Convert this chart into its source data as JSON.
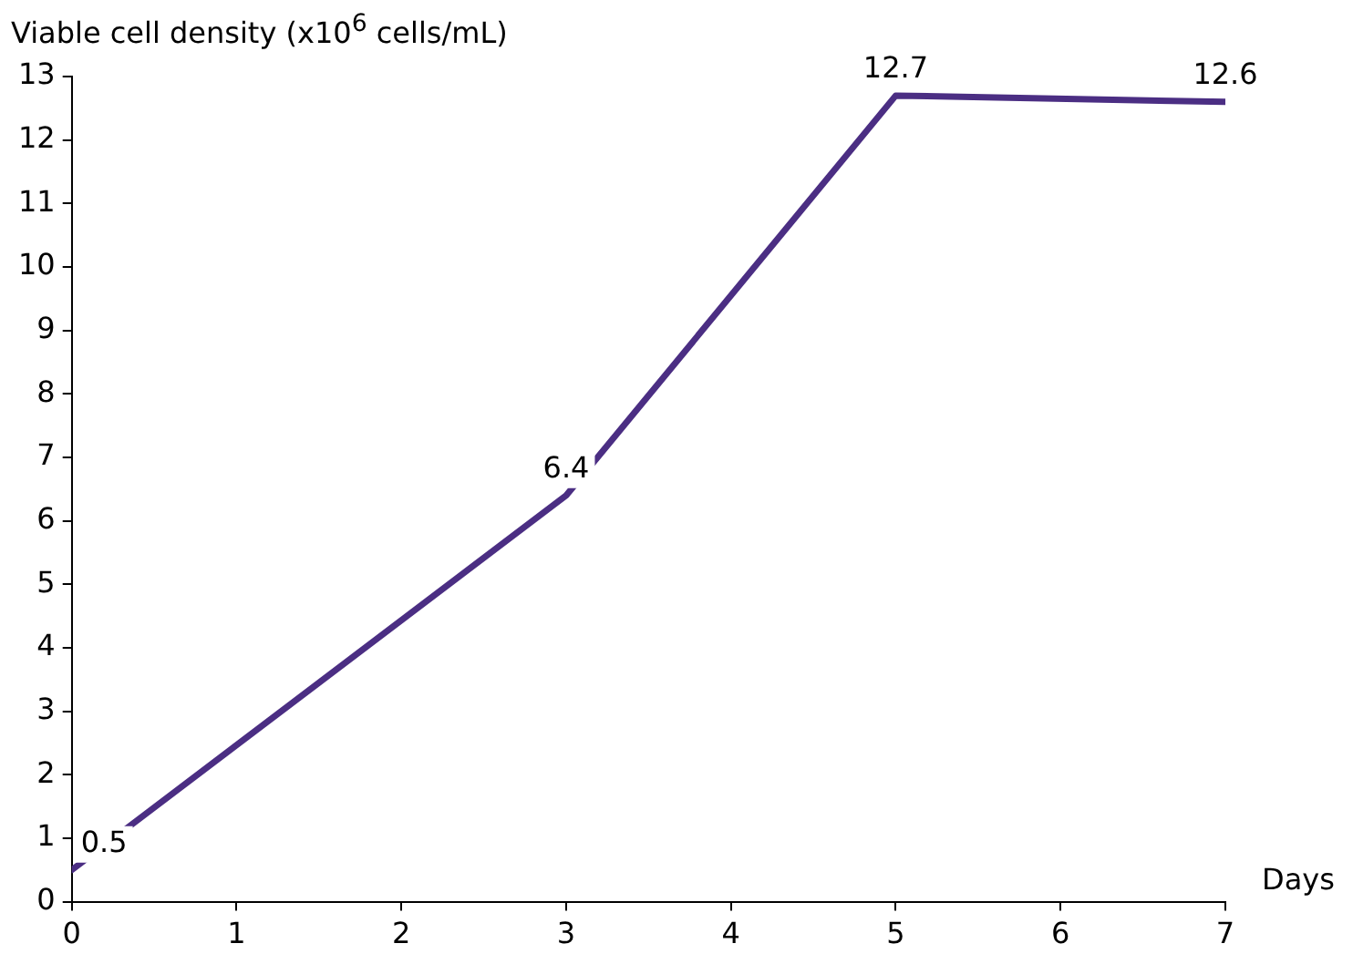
{
  "chart_data": {
    "type": "line",
    "ylabel": "Viable cell density (x10$^{6}$ cells/mL)",
    "xlabel": "Days",
    "x": [
      0,
      3,
      5,
      7
    ],
    "series": [
      {
        "color": "#4b2e83",
        "values": [
          0.5,
          6.4,
          12.7,
          12.6
        ]
      }
    ],
    "xlim": [
      0,
      7
    ],
    "xticks": [
      0,
      1,
      2,
      3,
      4,
      5,
      6,
      7
    ],
    "ylim": [
      0,
      13
    ],
    "yticks": [
      0,
      1,
      2,
      3,
      4,
      5,
      6,
      7,
      8,
      9,
      10,
      11,
      12,
      13
    ],
    "data_labels": true,
    "marker": "none",
    "line_style": "solid",
    "legend": false
  }
}
